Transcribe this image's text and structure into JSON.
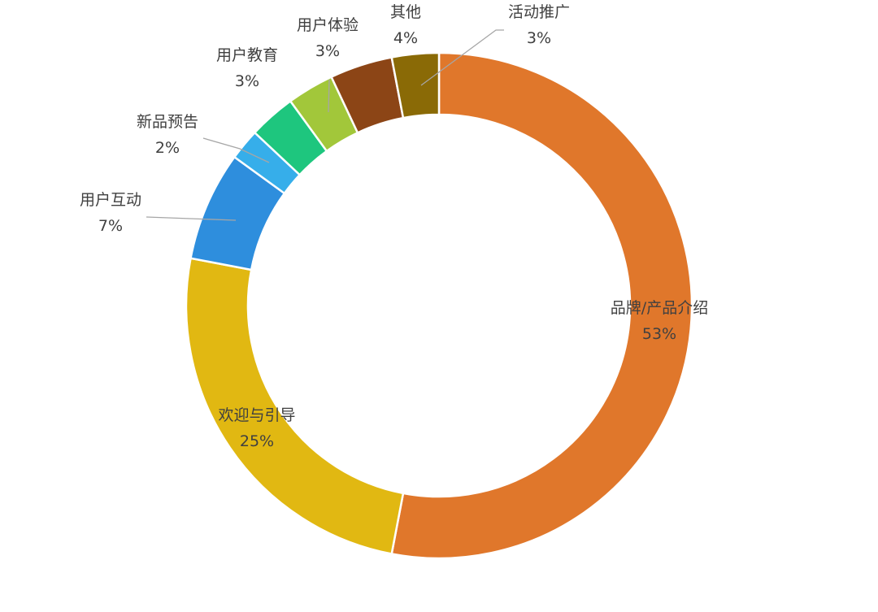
{
  "chart_data": {
    "type": "pie",
    "donut": true,
    "title": "",
    "legend": "none",
    "slices": [
      {
        "name": "品牌/产品介绍",
        "label": "53%",
        "value": 53,
        "color": "#E0772B"
      },
      {
        "name": "欢迎与引导",
        "label": "25%",
        "value": 25,
        "color": "#E1B812"
      },
      {
        "name": "用户互动",
        "label": "7%",
        "value": 7,
        "color": "#2E8EDD"
      },
      {
        "name": "新品预告",
        "label": "2%",
        "value": 2,
        "color": "#36AEEA"
      },
      {
        "name": "用户教育",
        "label": "3%",
        "value": 3,
        "color": "#1EC67E"
      },
      {
        "name": "用户体验",
        "label": "3%",
        "value": 3,
        "color": "#A2C73A"
      },
      {
        "name": "其他",
        "label": "4%",
        "value": 4,
        "color": "#8C4516"
      },
      {
        "name": "活动推广",
        "label": "3%",
        "value": 3,
        "color": "#8A6A06"
      }
    ]
  }
}
